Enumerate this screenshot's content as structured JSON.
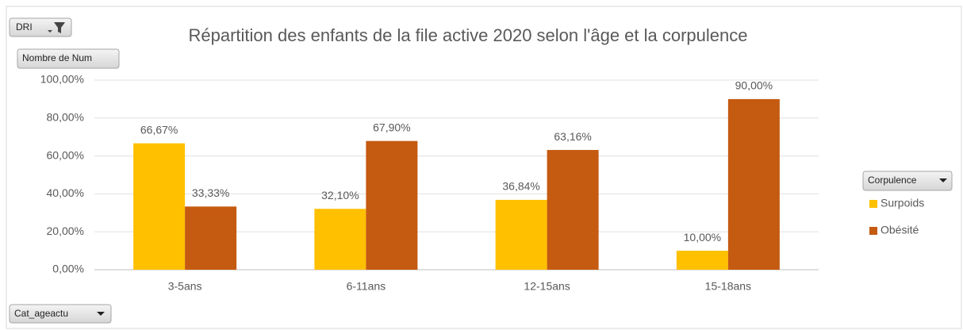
{
  "chart_data": {
    "type": "bar",
    "title": "Répartition des enfants de la file active 2020 selon l'âge et la corpulence",
    "field_buttons": {
      "filter": "DRI",
      "values": "Nombre de Num",
      "axis": "Cat_ageactu"
    },
    "legend_title": "Corpulence",
    "categories": [
      "3-5ans",
      "6-11ans",
      "12-15ans",
      "15-18ans"
    ],
    "series": [
      {
        "name": "Surpoids",
        "color": "#ffc000",
        "values": [
          66.67,
          32.1,
          36.84,
          10.0
        ],
        "value_labels": [
          "66,67%",
          "32,10%",
          "36,84%",
          "10,00%"
        ]
      },
      {
        "name": "Obésité",
        "color": "#c55a11",
        "values": [
          33.33,
          67.9,
          63.16,
          90.0
        ],
        "value_labels": [
          "33,33%",
          "67,90%",
          "63,16%",
          "90,00%"
        ]
      }
    ],
    "ylim": [
      0,
      100
    ],
    "yticks": [
      {
        "value": 0,
        "label": "0,00%"
      },
      {
        "value": 20,
        "label": "20,00%"
      },
      {
        "value": 40,
        "label": "40,00%"
      },
      {
        "value": 60,
        "label": "60,00%"
      },
      {
        "value": 80,
        "label": "80,00%"
      },
      {
        "value": 100,
        "label": "100,00%"
      }
    ],
    "grid": true,
    "legend": "right"
  }
}
